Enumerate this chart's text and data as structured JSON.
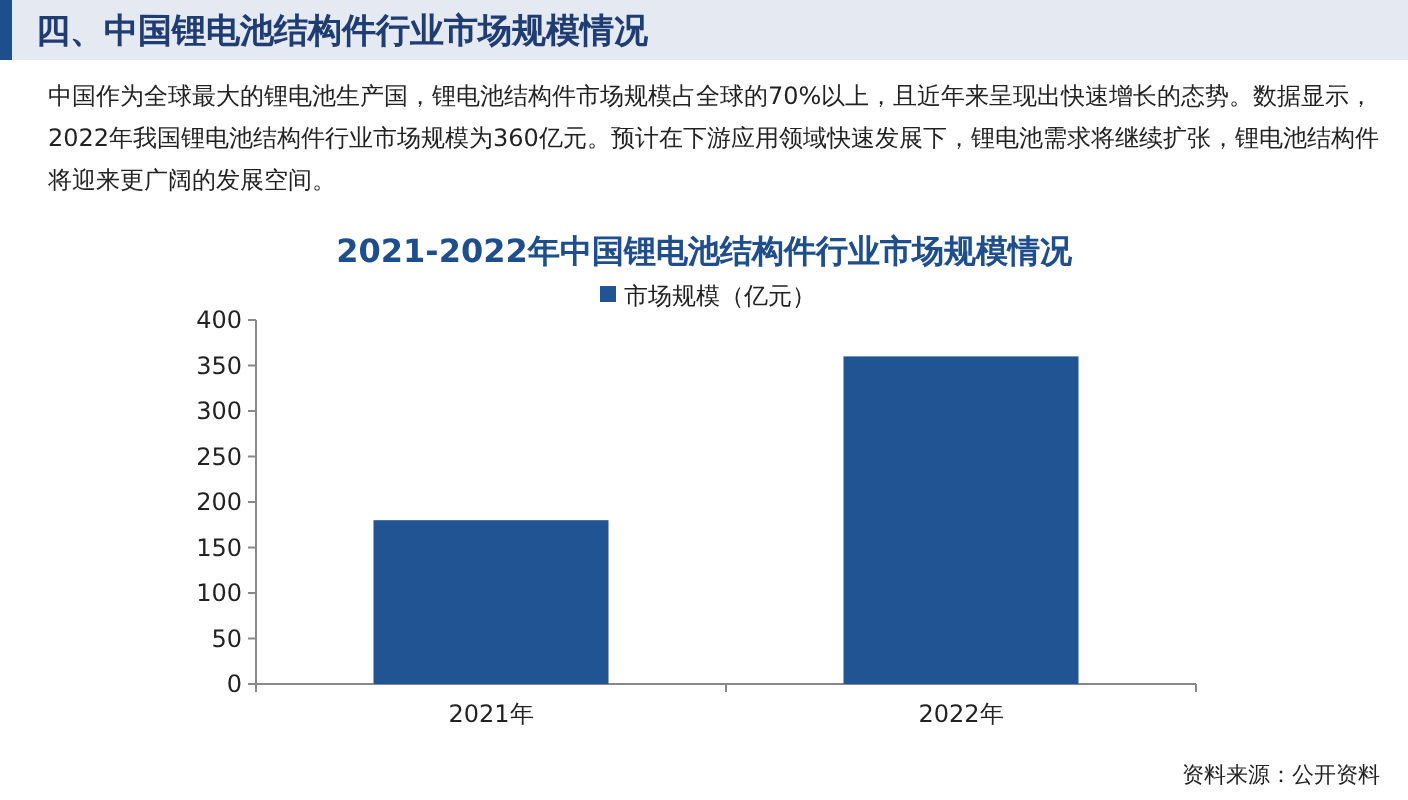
{
  "chart_data": {
    "type": "bar",
    "title": "2021-2022年中国锂电池结构件行业市场规模情况",
    "annotations": [
      "四、中国锂电池结构件行业市场规模情况",
      "中国作为全球最大的锂电池生产国，锂电池结构件市场规模占全球的70%以上，且近年来呈现出快速增长的态势。数据显示，2022年我国锂电池结构件行业市场规模为360亿元。预计在下游应用领域快速发展下，锂电池需求将继续扩张，锂电池结构件将迎来更广阔的发展空间。",
      "资料来源：公开资料"
    ],
    "categories": [
      "2021年",
      "2022年"
    ],
    "series": [
      {
        "name": "市场规模（亿元）",
        "color": "#215493",
        "values": [
          180,
          360
        ]
      }
    ],
    "ylim": [
      0,
      400
    ],
    "yticks": [
      0,
      50,
      100,
      150,
      200,
      250,
      300,
      350,
      400
    ],
    "grid": false,
    "legend": "top"
  }
}
